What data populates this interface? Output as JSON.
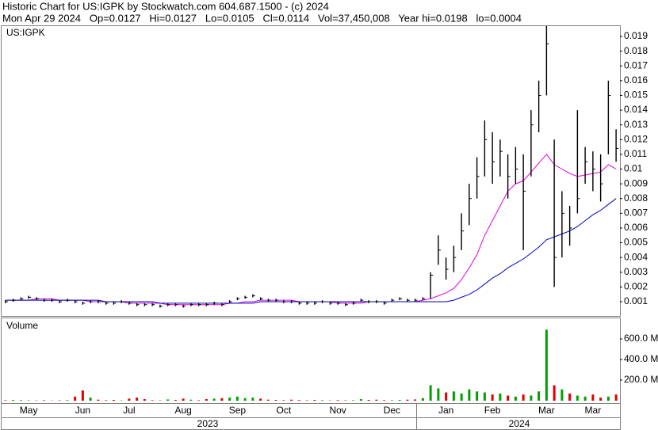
{
  "header": {
    "title": "Historic Chart for US:IGPK by Stockwatch.com 604.687.1500 - (c) 2024",
    "quote": "Mon Apr 29 2024   Op=0.0127   Hi=0.0127   Lo=0.0105   Cl=0.0114   Vol=37,450,008   Year hi=0.0198   lo=0.0004"
  },
  "years": [
    "2023",
    "2024"
  ],
  "chart_data": [
    {
      "type": "ohlc",
      "title": "US:IGPK",
      "categories": [
        null,
        null,
        null,
        "May",
        null,
        null,
        null,
        null,
        null,
        null,
        "Jun",
        null,
        null,
        null,
        null,
        null,
        "Jul",
        null,
        null,
        null,
        null,
        null,
        null,
        "Aug",
        null,
        null,
        null,
        null,
        null,
        null,
        "Sep",
        null,
        null,
        null,
        null,
        null,
        "Oct",
        null,
        null,
        null,
        null,
        null,
        null,
        "Nov",
        null,
        null,
        null,
        null,
        null,
        null,
        "Dec",
        null,
        null,
        null,
        null,
        null,
        null,
        "Jan",
        null,
        null,
        null,
        null,
        null,
        "Feb",
        null,
        null,
        null,
        null,
        null,
        null,
        "Mar",
        null,
        null,
        null,
        null,
        null,
        "Mar",
        null,
        null,
        null
      ],
      "high": [
        0.0011,
        0.0012,
        0.0013,
        0.0014,
        0.0013,
        0.0012,
        0.0012,
        0.0011,
        0.0012,
        0.0011,
        0.001,
        0.0011,
        0.0011,
        0.001,
        0.001,
        0.0011,
        0.001,
        0.0009,
        0.0009,
        0.0009,
        0.0008,
        0.0009,
        0.0009,
        0.0008,
        0.0009,
        0.0009,
        0.0009,
        0.001,
        0.0009,
        0.0011,
        0.0013,
        0.0014,
        0.0015,
        0.0013,
        0.0012,
        0.0012,
        0.0011,
        0.0011,
        0.001,
        0.001,
        0.001,
        0.0011,
        0.001,
        0.001,
        0.0009,
        0.001,
        0.0012,
        0.0011,
        0.0011,
        0.001,
        0.0012,
        0.0013,
        0.0012,
        0.0012,
        0.0013,
        0.003,
        0.0055,
        0.004,
        0.0048,
        0.007,
        0.009,
        0.0108,
        0.0133,
        0.0125,
        0.012,
        0.011,
        0.0115,
        0.011,
        0.014,
        0.016,
        0.0197,
        0.012,
        0.0085,
        0.0075,
        0.014,
        0.0115,
        0.0112,
        0.011,
        0.016,
        0.0127
      ],
      "low": [
        0.0009,
        0.001,
        0.0011,
        0.0012,
        0.0011,
        0.001,
        0.001,
        0.0009,
        0.001,
        0.0009,
        0.0008,
        0.0009,
        0.0009,
        0.0008,
        0.0008,
        0.0009,
        0.0008,
        0.0007,
        0.0007,
        0.0007,
        0.0006,
        0.0007,
        0.0007,
        0.0006,
        0.0007,
        0.0007,
        0.0007,
        0.0008,
        0.0007,
        0.0009,
        0.0011,
        0.0012,
        0.0013,
        0.0011,
        0.001,
        0.001,
        0.0009,
        0.0009,
        0.0008,
        0.0008,
        0.0008,
        0.0009,
        0.0008,
        0.0008,
        0.0007,
        0.0008,
        0.001,
        0.0009,
        0.0009,
        0.0008,
        0.001,
        0.0011,
        0.001,
        0.001,
        0.0011,
        0.0012,
        0.0035,
        0.0025,
        0.003,
        0.0045,
        0.0062,
        0.008,
        0.0095,
        0.009,
        0.0095,
        0.008,
        0.009,
        0.0045,
        0.0095,
        0.0125,
        0.015,
        0.002,
        0.004,
        0.0048,
        0.007,
        0.009,
        0.0085,
        0.0078,
        0.011,
        0.0105
      ],
      "close": [
        0.001,
        0.0011,
        0.0012,
        0.0013,
        0.0012,
        0.0011,
        0.0011,
        0.001,
        0.0011,
        0.001,
        0.0009,
        0.001,
        0.001,
        0.0009,
        0.0009,
        0.001,
        0.0009,
        0.0008,
        0.0008,
        0.0008,
        0.0007,
        0.0008,
        0.0008,
        0.0007,
        0.0008,
        0.0008,
        0.0008,
        0.0009,
        0.0008,
        0.001,
        0.0012,
        0.0013,
        0.0014,
        0.0012,
        0.0011,
        0.0011,
        0.001,
        0.001,
        0.0009,
        0.0009,
        0.0009,
        0.001,
        0.0009,
        0.0009,
        0.0008,
        0.0009,
        0.0011,
        0.001,
        0.001,
        0.0009,
        0.0011,
        0.0012,
        0.0011,
        0.0011,
        0.0012,
        0.0028,
        0.0045,
        0.0032,
        0.004,
        0.0058,
        0.008,
        0.0095,
        0.012,
        0.0105,
        0.0112,
        0.0095,
        0.01,
        0.0085,
        0.013,
        0.015,
        0.0185,
        0.004,
        0.007,
        0.006,
        0.008,
        0.0105,
        0.01,
        0.009,
        0.015,
        0.0114
      ],
      "averages": [
        {
          "color": "#e000e0",
          "values": [
            0.0011,
            0.0011,
            0.0011,
            0.0011,
            0.0012,
            0.0012,
            0.0012,
            0.0011,
            0.0011,
            0.0011,
            0.0011,
            0.001,
            0.001,
            0.001,
            0.001,
            0.001,
            0.0009,
            0.0009,
            0.0009,
            0.0009,
            0.0009,
            0.0008,
            0.0008,
            0.0008,
            0.0008,
            0.0008,
            0.0008,
            0.0008,
            0.0008,
            0.0009,
            0.0009,
            0.001,
            0.001,
            0.0011,
            0.0011,
            0.0011,
            0.0011,
            0.0011,
            0.001,
            0.001,
            0.001,
            0.001,
            0.001,
            0.0009,
            0.0009,
            0.0009,
            0.0009,
            0.001,
            0.001,
            0.001,
            0.001,
            0.001,
            0.001,
            0.001,
            0.0011,
            0.0012,
            0.0014,
            0.0016,
            0.0019,
            0.0025,
            0.0033,
            0.0042,
            0.0055,
            0.0065,
            0.0075,
            0.0085,
            0.009,
            0.0092,
            0.0098,
            0.0104,
            0.011,
            0.0103,
            0.01,
            0.0097,
            0.0095,
            0.0096,
            0.0097,
            0.0098,
            0.0103,
            0.01
          ]
        },
        {
          "color": "#0000c0",
          "values": [
            0.0011,
            0.0011,
            0.0011,
            0.0011,
            0.0011,
            0.0011,
            0.0011,
            0.0011,
            0.0011,
            0.0011,
            0.0011,
            0.0011,
            0.0011,
            0.001,
            0.001,
            0.001,
            0.001,
            0.001,
            0.001,
            0.001,
            0.0009,
            0.0009,
            0.0009,
            0.0009,
            0.0009,
            0.0009,
            0.0009,
            0.0009,
            0.0009,
            0.0009,
            0.0009,
            0.0009,
            0.0009,
            0.001,
            0.001,
            0.001,
            0.001,
            0.001,
            0.001,
            0.001,
            0.001,
            0.001,
            0.001,
            0.001,
            0.001,
            0.001,
            0.001,
            0.001,
            0.001,
            0.001,
            0.001,
            0.001,
            0.001,
            0.001,
            0.001,
            0.001,
            0.001,
            0.001,
            0.0011,
            0.0013,
            0.0015,
            0.0018,
            0.0022,
            0.0026,
            0.0029,
            0.0033,
            0.0036,
            0.0039,
            0.0043,
            0.0047,
            0.0052,
            0.0054,
            0.0056,
            0.0058,
            0.0061,
            0.0065,
            0.0069,
            0.0072,
            0.0076,
            0.008
          ]
        }
      ],
      "color": "#000000",
      "ylim": [
        0,
        0.0197
      ],
      "yticks": [
        0.001,
        0.002,
        0.003,
        0.004,
        0.005,
        0.006,
        0.007,
        0.008,
        0.009,
        0.01,
        0.011,
        0.012,
        0.013,
        0.014,
        0.015,
        0.016,
        0.017,
        0.018,
        0.019
      ]
    },
    {
      "type": "volume",
      "title": "Volume",
      "values": [
        5000000,
        8000000,
        6000000,
        4000000,
        3000000,
        5000000,
        2000000,
        4000000,
        6000000,
        40000000,
        100000000,
        30000000,
        10000000,
        5000000,
        8000000,
        3000000,
        20000000,
        30000000,
        15000000,
        5000000,
        3000000,
        12000000,
        8000000,
        20000000,
        10000000,
        5000000,
        15000000,
        20000000,
        25000000,
        30000000,
        40000000,
        25000000,
        30000000,
        20000000,
        10000000,
        8000000,
        5000000,
        10000000,
        6000000,
        4000000,
        8000000,
        5000000,
        3000000,
        6000000,
        4000000,
        5000000,
        15000000,
        8000000,
        10000000,
        6000000,
        5000000,
        8000000,
        10000000,
        12000000,
        25000000,
        150000000,
        120000000,
        80000000,
        90000000,
        70000000,
        110000000,
        90000000,
        80000000,
        60000000,
        70000000,
        50000000,
        40000000,
        60000000,
        50000000,
        90000000,
        690000000,
        150000000,
        110000000,
        70000000,
        50000000,
        40000000,
        60000000,
        30000000,
        40000000,
        60000000
      ],
      "up_color": "#00a000",
      "down_color": "#e00000",
      "ylim": [
        0,
        800000000
      ],
      "yticks": [
        {
          "value": 200000000,
          "label": "200.0 M"
        },
        {
          "value": 400000000,
          "label": "400.0 M"
        },
        {
          "value": 600000000,
          "label": "600.0 M"
        }
      ]
    }
  ]
}
